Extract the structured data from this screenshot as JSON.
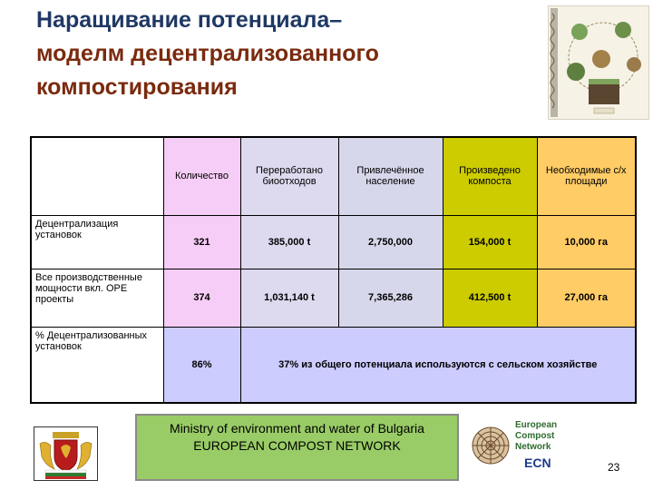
{
  "title": {
    "line1": "Наращивание потенциала–",
    "line2": "моделм децентрализованного",
    "line3": "компостирования"
  },
  "table": {
    "headers": [
      "Количество",
      "Переработано биоотходов",
      "Привлечённое население",
      "Произведено компоста",
      "Необходимые с/х площади"
    ],
    "rows": [
      {
        "label": "Децентрализация установок",
        "values": [
          "321",
          "385,000 t",
          "2,750,000",
          "154,000 t",
          "10,000 га"
        ]
      },
      {
        "label": "Все производственные мощности вкл. OPE проекты",
        "values": [
          "374",
          "1,031,140 t",
          "7,365,286",
          "412,500 t",
          "27,000 га"
        ]
      },
      {
        "label": "% Децентрализованных установок",
        "values": [
          "86%"
        ],
        "note": "37% из общего потенциала используются с сельском хозяйстве"
      }
    ]
  },
  "footer": {
    "line1": "Ministry of environment and water of Bulgaria",
    "line2": "EUROPEAN COMPOST NETWORK"
  },
  "ecn_logo": {
    "line1": "European",
    "line2": "Compost",
    "line3": "Network",
    "abbr": "ECN"
  },
  "page_number": "23",
  "colors": {
    "title_dark": "#1f3864",
    "title_brown": "#7a2a0e",
    "col_count": "#f6cdf6",
    "col_processed": "#ddd9ef",
    "col_population": "#d7d7ec",
    "col_compost": "#cccc00",
    "col_area": "#ffcc66",
    "merged_note": "#ccccff",
    "footer_bg": "#99cc66"
  },
  "icons": [
    "compost-cycle-illustration",
    "bulgaria-coat-of-arms-icon",
    "ecn-logo-icon"
  ]
}
